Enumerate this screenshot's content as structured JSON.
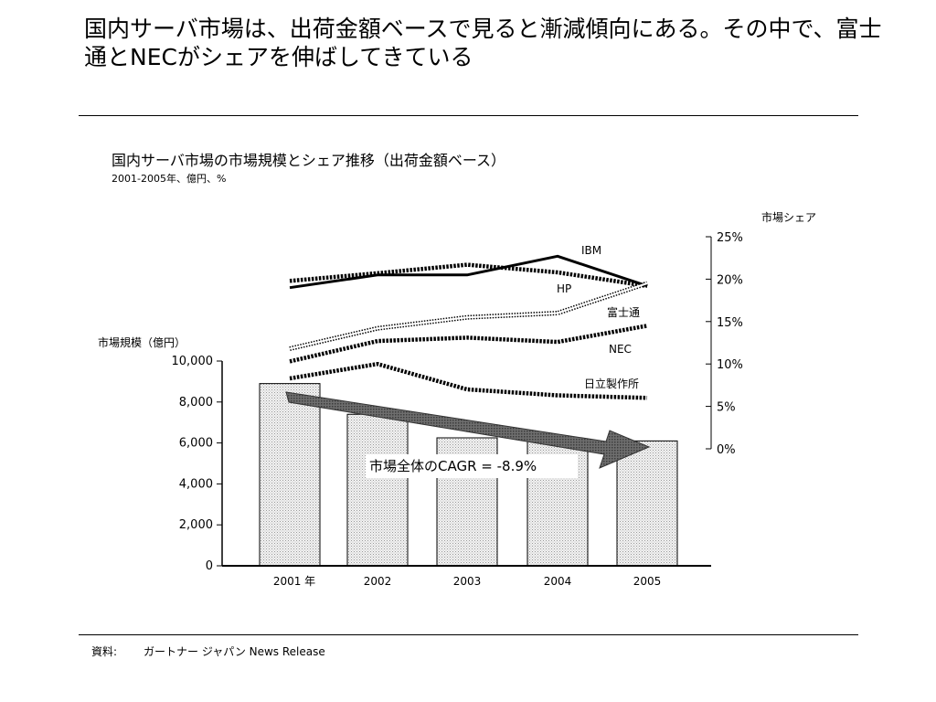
{
  "headline": "国内サーバ市場は、出荷金額ベースで見ると漸減傾向にある。その中で、富士通とNECがシェアを伸ばしてきている",
  "source": {
    "label": "資料:",
    "text": "ガートナー ジャパン News Release"
  },
  "chart_data": {
    "type": "bar+line",
    "title": "国内サーバ市場の市場規模とシェア推移（出荷金額ベース）",
    "subtitle": "2001-2005年、億円、%",
    "categories": [
      "2001 年",
      "2002",
      "2003",
      "2004",
      "2005"
    ],
    "bars": {
      "axis_title": "市場規模（億円）",
      "values": [
        8900,
        7400,
        6250,
        6150,
        6100
      ],
      "ylim": [
        0,
        10000
      ],
      "ticks": [
        0,
        2000,
        4000,
        6000,
        8000,
        10000
      ],
      "tick_labels": [
        "0",
        "2,000",
        "4,000",
        "6,000",
        "8,000",
        "10,000"
      ]
    },
    "share": {
      "axis_title": "市場シェア",
      "ylim": [
        0,
        25
      ],
      "ticks": [
        0,
        5,
        10,
        15,
        20,
        25
      ],
      "tick_labels": [
        "0%",
        "5%",
        "10%",
        "15%",
        "20%",
        "25%"
      ],
      "series": [
        {
          "name": "IBM",
          "values": [
            19.0,
            20.5,
            20.5,
            22.7,
            19.2
          ],
          "style": "solid"
        },
        {
          "name": "HP",
          "values": [
            19.8,
            20.7,
            21.7,
            20.8,
            19.2
          ],
          "style": "dashed-heavy"
        },
        {
          "name": "富士通",
          "values": [
            11.8,
            14.2,
            15.5,
            16.0,
            19.5
          ],
          "style": "dotted-outline"
        },
        {
          "name": "NEC",
          "values": [
            10.3,
            12.7,
            13.1,
            12.6,
            14.5
          ],
          "style": "dashed-heavy"
        },
        {
          "name": "日立製作所",
          "values": [
            8.3,
            10.0,
            7.0,
            6.3,
            6.0
          ],
          "style": "dashed-heavy"
        }
      ]
    },
    "annotation": {
      "text": "市場全体のCAGR = -8.9%",
      "cagr": -8.9
    }
  }
}
